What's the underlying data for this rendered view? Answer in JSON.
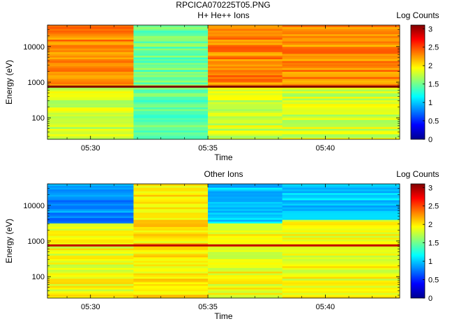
{
  "figure_title": "RPCICA070225T05.PNG",
  "colormap": [
    "#00008f",
    "#0000ff",
    "#0080ff",
    "#00ffff",
    "#80ff80",
    "#ffff00",
    "#ff8000",
    "#ff0000",
    "#800000"
  ],
  "chart_data": [
    {
      "type": "heatmap",
      "title": "H+ He++ Ions",
      "xlabel": "Time",
      "ylabel": "Energy (eV)",
      "yscale": "log",
      "ylim": [
        25,
        40000
      ],
      "xlim": [
        "05:28:10",
        "05:43:10"
      ],
      "x_ticks": [
        "05:30",
        "05:35",
        "05:40"
      ],
      "y_ticks": [
        "100",
        "1000",
        "10000"
      ],
      "colorbar": {
        "label": "Log Counts",
        "range": [
          0,
          3.1
        ],
        "ticks": [
          "0",
          "0.5",
          "1",
          "1.5",
          "2",
          "2.5",
          "3"
        ]
      },
      "segments": [
        {
          "start": "05:28:10",
          "end": "05:31:50",
          "low_energy_level": 1.8,
          "high_energy_level": 2.3,
          "split_energy_eV": 750
        },
        {
          "start": "05:31:50",
          "end": "05:35:00",
          "low_energy_level": 1.45,
          "high_energy_level": 1.5,
          "split_energy_eV": 750
        },
        {
          "start": "05:35:00",
          "end": "05:38:10",
          "low_energy_level": 1.8,
          "high_energy_level": 2.3,
          "split_energy_eV": 750
        },
        {
          "start": "05:38:10",
          "end": "05:43:10",
          "low_energy_level": 1.8,
          "high_energy_level": 2.3,
          "split_energy_eV": 750
        }
      ],
      "line_energy_eV": 750,
      "line_level": 3.1
    },
    {
      "type": "heatmap",
      "title": "Other Ions",
      "xlabel": "Time",
      "ylabel": "Energy (eV)",
      "yscale": "log",
      "ylim": [
        25,
        40000
      ],
      "xlim": [
        "05:28:10",
        "05:43:10"
      ],
      "x_ticks": [
        "05:30",
        "05:35",
        "05:40"
      ],
      "y_ticks": [
        "100",
        "1000",
        "10000"
      ],
      "colorbar": {
        "label": "Log Counts",
        "range": [
          0,
          3.1
        ],
        "ticks": [
          "0",
          "0.5",
          "1",
          "1.5",
          "2",
          "2.5",
          "3"
        ]
      },
      "segments": [
        {
          "start": "05:28:10",
          "end": "05:31:50",
          "low_energy_level": 1.9,
          "high_energy_level": 0.8,
          "split_energy_eV": 3000
        },
        {
          "start": "05:31:50",
          "end": "05:35:00",
          "low_energy_level": 2.0,
          "high_energy_level": 2.0,
          "split_energy_eV": 3000
        },
        {
          "start": "05:35:00",
          "end": "05:38:10",
          "low_energy_level": 1.9,
          "high_energy_level": 1.0,
          "split_energy_eV": 3000
        },
        {
          "start": "05:38:10",
          "end": "05:43:10",
          "low_energy_level": 1.9,
          "high_energy_level": 1.0,
          "split_energy_eV": 4000
        }
      ],
      "line_energy_eV": 750,
      "line_level": 2.9
    }
  ]
}
